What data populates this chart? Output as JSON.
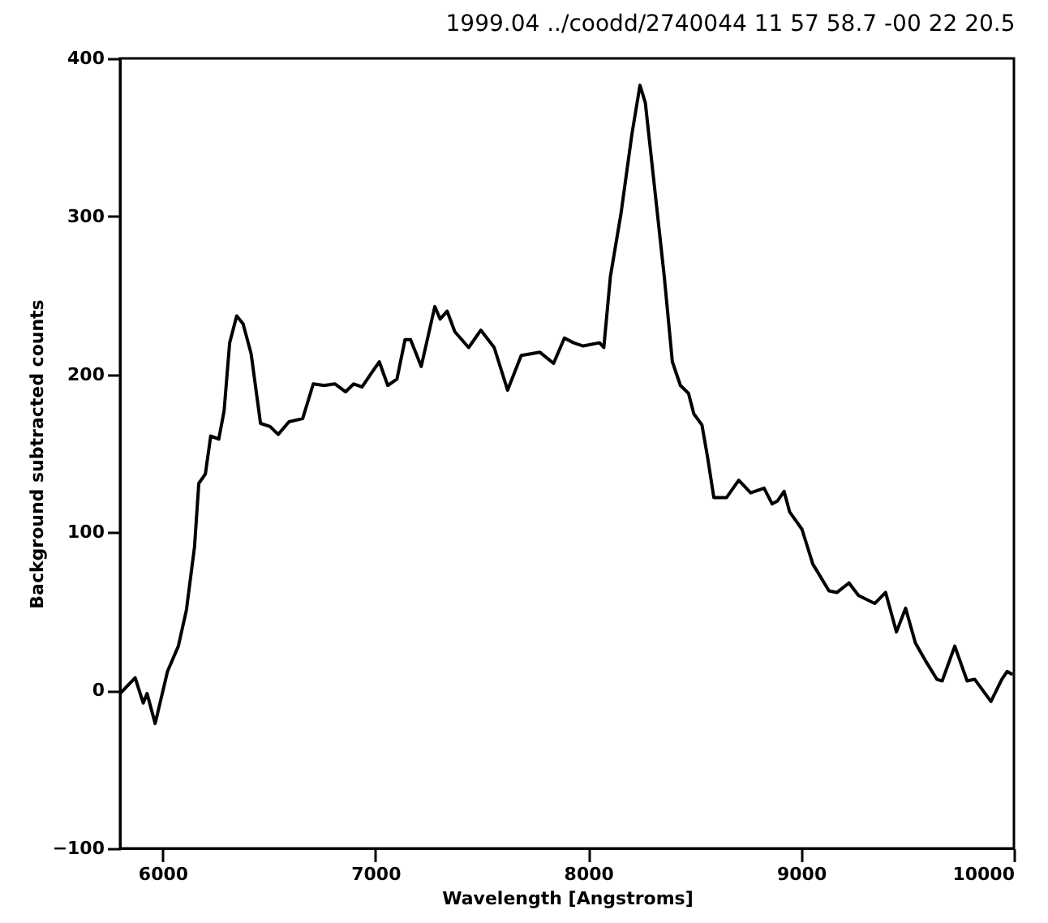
{
  "chart_data": {
    "type": "line",
    "title": "1999.04 ../coodd/2740044   11 57 58.7   -00 22 20.5",
    "xlabel": "Wavelength [Angstroms]",
    "ylabel": "Background subtracted counts",
    "xlim": [
      5800,
      10000
    ],
    "xticks": [
      6000,
      7000,
      8000,
      9000,
      10000
    ],
    "ylim": [
      -100,
      400
    ],
    "yticks": [
      -100,
      0,
      100,
      200,
      300,
      400
    ],
    "grid": false,
    "marker": "none",
    "line_style": "solid",
    "series": [
      {
        "color": "#000000",
        "x": [
          5800,
          5871,
          5909,
          5927,
          5965,
          6023,
          6074,
          6112,
          6150,
          6170,
          6201,
          6226,
          6264,
          6289,
          6315,
          6348,
          6378,
          6416,
          6460,
          6505,
          6543,
          6594,
          6658,
          6708,
          6759,
          6810,
          6860,
          6898,
          6937,
          6982,
          7018,
          7058,
          7101,
          7139,
          7165,
          7215,
          7279,
          7304,
          7337,
          7373,
          7438,
          7495,
          7558,
          7621,
          7685,
          7773,
          7837,
          7888,
          7931,
          7976,
          8053,
          8073,
          8104,
          8154,
          8205,
          8243,
          8268,
          8306,
          8357,
          8395,
          8433,
          8471,
          8496,
          8534,
          8560,
          8590,
          8649,
          8707,
          8763,
          8826,
          8864,
          8890,
          8920,
          8946,
          9004,
          9055,
          9131,
          9169,
          9225,
          9270,
          9346,
          9397,
          9448,
          9491,
          9537,
          9588,
          9638,
          9663,
          9722,
          9780,
          9816,
          9892,
          9943,
          9968,
          9994
        ],
        "values": [
          -2,
          8,
          -8,
          -2,
          -21,
          12,
          28,
          51,
          91,
          131,
          137,
          161,
          159,
          177,
          220,
          237,
          232,
          213,
          169,
          167,
          162,
          170,
          172,
          194,
          193,
          194,
          189,
          194,
          192,
          201,
          208,
          193,
          197,
          222,
          222,
          205,
          243,
          235,
          240,
          227,
          217,
          228,
          217,
          190,
          212,
          214,
          207,
          223,
          220,
          218,
          220,
          217,
          262,
          302,
          352,
          383,
          372,
          325,
          262,
          208,
          193,
          188,
          175,
          168,
          148,
          122,
          122,
          133,
          125,
          128,
          118,
          120,
          126,
          113,
          102,
          80,
          63,
          62,
          68,
          60,
          55,
          62,
          37,
          52,
          30,
          18,
          7,
          6,
          28,
          6,
          7,
          -7,
          7,
          12,
          10
        ]
      }
    ]
  }
}
